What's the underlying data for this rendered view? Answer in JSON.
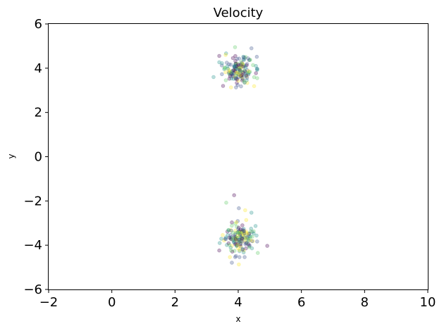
{
  "chart_data": {
    "type": "scatter",
    "title": "Velocity",
    "xlabel": "x",
    "ylabel": "y",
    "xlim": [
      -2,
      10
    ],
    "ylim": [
      -6,
      6
    ],
    "xticks": [
      -2,
      0,
      2,
      4,
      6,
      8,
      10
    ],
    "yticks": [
      -6,
      -4,
      -2,
      0,
      2,
      4,
      6
    ],
    "grid": false,
    "colormap": "viridis",
    "marker_alpha": 0.3,
    "palette": [
      "#440154",
      "#3b528b",
      "#21918c",
      "#5ec962",
      "#fde725"
    ],
    "clusters": [
      {
        "center": [
          4.0,
          3.9
        ],
        "spread": [
          0.25,
          0.32
        ],
        "count": 160
      },
      {
        "center": [
          4.0,
          -3.7
        ],
        "spread": [
          0.25,
          0.35
        ],
        "count": 160
      }
    ],
    "points": [
      [
        3.87,
        -1.74
      ],
      [
        3.62,
        -2.08
      ],
      [
        4.02,
        -2.33
      ],
      [
        4.22,
        -2.42
      ],
      [
        4.42,
        -2.53
      ],
      [
        4.92,
        -4.03
      ],
      [
        4.62,
        -4.35
      ],
      [
        3.8,
        -4.79
      ],
      [
        4.02,
        -4.87
      ],
      [
        3.22,
        3.6
      ],
      [
        3.52,
        3.2
      ],
      [
        3.9,
        4.95
      ],
      [
        4.42,
        4.9
      ],
      [
        3.6,
        4.6
      ],
      [
        4.56,
        4.1
      ]
    ]
  }
}
